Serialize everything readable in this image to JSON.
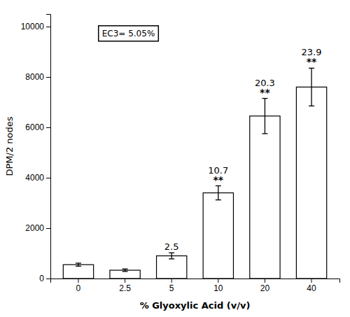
{
  "chart_data": {
    "type": "bar",
    "categories": [
      "0",
      "2.5",
      "5",
      "10",
      "20",
      "40"
    ],
    "values": [
      550,
      330,
      900,
      3400,
      6450,
      7600
    ],
    "errors": [
      60,
      50,
      120,
      280,
      700,
      750
    ],
    "stimulation_indices": [
      null,
      null,
      "2.5",
      "10.7",
      "20.3",
      "23.9"
    ],
    "significance": [
      null,
      null,
      null,
      "**",
      "**",
      "**"
    ],
    "annotation": "EC3= 5.05%",
    "xlabel": "% Glyoxylic Acid (v/v)",
    "ylabel": "DPM/2 nodes",
    "ylim": [
      0,
      10500
    ],
    "yticks": [
      0,
      2000,
      4000,
      6000,
      8000,
      10000
    ],
    "color": "white",
    "grid": false
  }
}
